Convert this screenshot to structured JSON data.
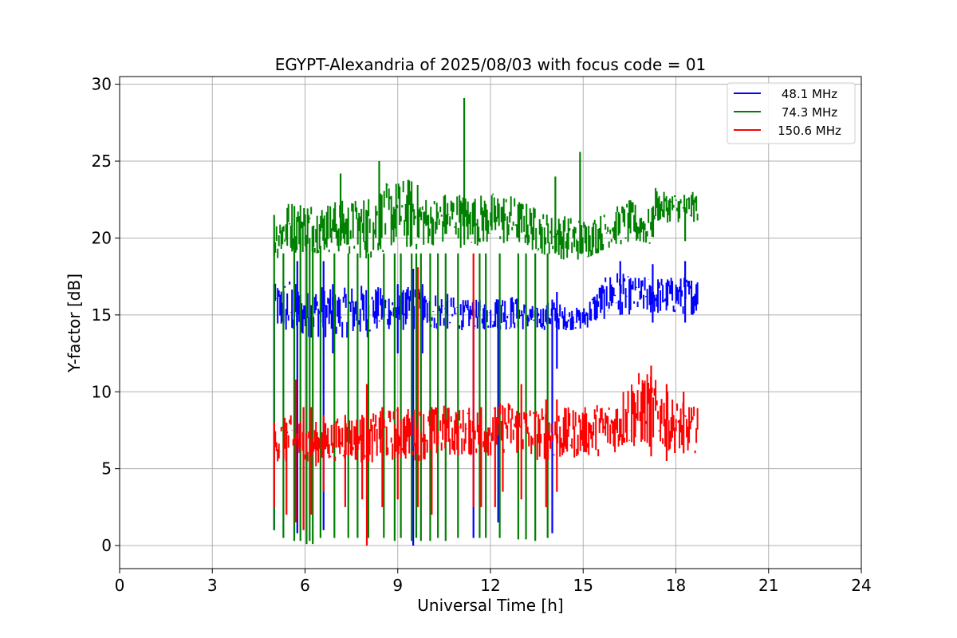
{
  "chart_data": {
    "type": "line",
    "title": "EGYPT-Alexandria of 2025/08/03 with focus code = 01",
    "xlabel": "Universal Time [h]",
    "ylabel": "Y-factor [dB]",
    "xlim": [
      0,
      24
    ],
    "ylim": [
      -1.5,
      30.5
    ],
    "xticks": [
      0,
      3,
      6,
      9,
      12,
      15,
      18,
      21,
      24
    ],
    "yticks": [
      0,
      5,
      10,
      15,
      20,
      25,
      30
    ],
    "grid": true,
    "legend_position": "top-right",
    "series": [
      {
        "name": "48.1 MHz",
        "color": "#0000ff",
        "band": {
          "x": [
            5.0,
            5.5,
            6.0,
            6.5,
            7.0,
            7.5,
            8.0,
            8.5,
            9.0,
            9.5,
            10.0,
            10.5,
            11.0,
            11.5,
            12.0,
            12.5,
            13.0,
            13.5,
            14.0,
            14.5,
            15.0,
            15.5,
            16.0,
            16.5,
            17.0,
            17.5,
            18.0,
            18.7
          ],
          "low": [
            14.0,
            13.5,
            13.5,
            13.5,
            13.5,
            13.5,
            13.5,
            14.0,
            14.0,
            13.8,
            14.0,
            14.0,
            14.0,
            14.0,
            14.0,
            14.0,
            14.0,
            14.0,
            14.0,
            14.0,
            14.0,
            14.5,
            15.0,
            15.0,
            15.0,
            15.0,
            15.0,
            15.0
          ],
          "high": [
            17.0,
            17.5,
            16.5,
            17.0,
            16.5,
            17.0,
            17.0,
            16.8,
            16.5,
            17.0,
            16.5,
            16.5,
            16.0,
            16.0,
            16.0,
            16.5,
            16.0,
            15.5,
            16.0,
            15.5,
            15.5,
            17.0,
            18.0,
            17.5,
            17.5,
            17.5,
            17.5,
            17.5
          ]
        },
        "spikes": [
          {
            "x": 5.0,
            "low": 1.0,
            "high": 17.0
          },
          {
            "x": 5.75,
            "low": 0.8,
            "high": 18.5
          },
          {
            "x": 6.6,
            "low": 1.0,
            "high": 18.5
          },
          {
            "x": 6.9,
            "low": 12.5,
            "high": 17.0
          },
          {
            "x": 9.0,
            "low": 12.5,
            "high": 17.0
          },
          {
            "x": 9.5,
            "low": 0.0,
            "high": 18.0
          },
          {
            "x": 9.8,
            "low": 12.5,
            "high": 17.0
          },
          {
            "x": 11.45,
            "low": 0.5,
            "high": 16.0
          },
          {
            "x": 12.25,
            "low": 1.5,
            "high": 16.0
          },
          {
            "x": 14.0,
            "low": 0.8,
            "high": 16.0
          },
          {
            "x": 14.15,
            "low": 11.5,
            "high": 16.5
          },
          {
            "x": 16.2,
            "low": 15.0,
            "high": 18.5
          },
          {
            "x": 17.25,
            "low": 14.5,
            "high": 18.3
          },
          {
            "x": 18.3,
            "low": 14.5,
            "high": 18.5
          }
        ]
      },
      {
        "name": "74.3 MHz",
        "color": "#008000",
        "band": {
          "x": [
            5.0,
            5.5,
            6.0,
            6.5,
            7.0,
            7.5,
            8.0,
            8.5,
            9.0,
            9.5,
            10.0,
            10.5,
            11.0,
            11.05,
            11.5,
            12.0,
            12.5,
            13.0,
            13.5,
            14.0,
            14.5,
            15.0,
            15.5,
            16.0,
            16.5,
            17.0,
            17.25,
            17.3,
            17.5,
            18.0,
            18.7
          ],
          "low": [
            18.5,
            19.0,
            19.0,
            19.0,
            19.0,
            18.8,
            18.5,
            19.0,
            19.5,
            19.0,
            19.5,
            19.5,
            20.0,
            19.0,
            19.5,
            19.5,
            19.5,
            19.5,
            19.0,
            18.8,
            18.5,
            18.5,
            19.0,
            19.5,
            19.5,
            19.5,
            19.0,
            21.0,
            21.0,
            21.0,
            21.0
          ],
          "high": [
            21.5,
            22.5,
            22.5,
            22.3,
            22.5,
            22.5,
            22.8,
            23.5,
            23.8,
            24.0,
            22.5,
            23.0,
            23.0,
            23.0,
            22.8,
            23.0,
            23.0,
            22.5,
            22.0,
            21.5,
            21.5,
            21.3,
            21.5,
            22.0,
            22.5,
            22.0,
            22.0,
            23.5,
            23.0,
            23.0,
            23.0
          ]
        },
        "spikes": [
          {
            "x": 5.0,
            "low": 1.0,
            "high": 21.5
          },
          {
            "x": 5.3,
            "low": 0.5,
            "high": 19.0
          },
          {
            "x": 5.65,
            "low": 0.3,
            "high": 20.0
          },
          {
            "x": 5.85,
            "low": 0.3,
            "high": 20.0
          },
          {
            "x": 6.05,
            "low": 0.1,
            "high": 20.0
          },
          {
            "x": 6.15,
            "low": 0.3,
            "high": 20.0
          },
          {
            "x": 6.25,
            "low": 0.1,
            "high": 20.0
          },
          {
            "x": 6.5,
            "low": 0.5,
            "high": 19.5
          },
          {
            "x": 6.95,
            "low": 0.5,
            "high": 19.0
          },
          {
            "x": 7.15,
            "low": 19.5,
            "high": 24.2
          },
          {
            "x": 7.4,
            "low": 0.5,
            "high": 19.0
          },
          {
            "x": 7.7,
            "low": 0.5,
            "high": 19.0
          },
          {
            "x": 8.05,
            "low": 0.5,
            "high": 19.0
          },
          {
            "x": 8.4,
            "low": 19.5,
            "high": 25.0
          },
          {
            "x": 8.55,
            "low": 0.5,
            "high": 19.0
          },
          {
            "x": 8.9,
            "low": 0.3,
            "high": 19.0
          },
          {
            "x": 9.1,
            "low": 0.5,
            "high": 19.0
          },
          {
            "x": 9.45,
            "low": 0.3,
            "high": 19.0
          },
          {
            "x": 9.6,
            "low": 0.5,
            "high": 19.0
          },
          {
            "x": 9.75,
            "low": 0.3,
            "high": 19.0
          },
          {
            "x": 10.05,
            "low": 0.3,
            "high": 19.0
          },
          {
            "x": 10.3,
            "low": 0.5,
            "high": 19.0
          },
          {
            "x": 10.55,
            "low": 0.3,
            "high": 19.0
          },
          {
            "x": 10.95,
            "low": 0.5,
            "high": 19.0
          },
          {
            "x": 11.15,
            "low": 20.0,
            "high": 29.1
          },
          {
            "x": 11.65,
            "low": 0.5,
            "high": 19.0
          },
          {
            "x": 11.85,
            "low": 0.5,
            "high": 19.0
          },
          {
            "x": 12.3,
            "low": 0.5,
            "high": 19.0
          },
          {
            "x": 12.9,
            "low": 0.4,
            "high": 19.0
          },
          {
            "x": 13.15,
            "low": 0.4,
            "high": 19.0
          },
          {
            "x": 13.45,
            "low": 0.3,
            "high": 19.0
          },
          {
            "x": 13.85,
            "low": 0.5,
            "high": 19.0
          },
          {
            "x": 14.1,
            "low": 19.0,
            "high": 24.0
          },
          {
            "x": 14.9,
            "low": 19.0,
            "high": 25.6
          },
          {
            "x": 18.3,
            "low": 19.8,
            "high": 22.0
          }
        ]
      },
      {
        "name": "150.6 MHz",
        "color": "#ff0000",
        "band": {
          "x": [
            5.0,
            5.5,
            6.0,
            6.5,
            7.0,
            7.5,
            8.0,
            8.5,
            9.0,
            9.5,
            10.0,
            10.5,
            11.0,
            11.5,
            12.0,
            12.5,
            13.0,
            13.5,
            14.0,
            14.5,
            15.0,
            15.5,
            16.0,
            16.5,
            17.0,
            17.5,
            18.0,
            18.7
          ],
          "low": [
            5.5,
            5.2,
            5.0,
            5.2,
            5.5,
            5.5,
            5.3,
            5.5,
            5.5,
            5.5,
            5.5,
            5.8,
            5.8,
            5.8,
            5.8,
            6.0,
            5.8,
            5.5,
            5.5,
            5.5,
            5.8,
            5.8,
            6.0,
            6.3,
            6.3,
            6.3,
            6.0,
            6.0
          ],
          "high": [
            8.0,
            8.5,
            8.3,
            8.0,
            8.3,
            8.5,
            8.5,
            8.8,
            9.0,
            9.0,
            9.0,
            9.2,
            9.0,
            9.0,
            9.0,
            9.5,
            9.3,
            9.0,
            9.0,
            9.0,
            9.0,
            9.3,
            9.5,
            11.0,
            11.5,
            10.5,
            9.5,
            9.0
          ]
        },
        "spikes": [
          {
            "x": 5.0,
            "low": 2.5,
            "high": 8.0
          },
          {
            "x": 5.4,
            "low": 2.0,
            "high": 8.0
          },
          {
            "x": 5.7,
            "low": 1.5,
            "high": 10.8
          },
          {
            "x": 5.95,
            "low": 1.0,
            "high": 9.0
          },
          {
            "x": 6.2,
            "low": 2.0,
            "high": 9.0
          },
          {
            "x": 6.6,
            "low": 3.5,
            "high": 8.5
          },
          {
            "x": 7.3,
            "low": 2.5,
            "high": 8.5
          },
          {
            "x": 7.85,
            "low": 3.0,
            "high": 8.5
          },
          {
            "x": 8.0,
            "low": 0.0,
            "high": 10.5
          },
          {
            "x": 8.5,
            "low": 2.5,
            "high": 9.0
          },
          {
            "x": 9.0,
            "low": 3.0,
            "high": 9.0
          },
          {
            "x": 9.65,
            "low": 2.5,
            "high": 18.1
          },
          {
            "x": 10.1,
            "low": 2.0,
            "high": 9.0
          },
          {
            "x": 11.45,
            "low": 2.5,
            "high": 19.0
          },
          {
            "x": 11.7,
            "low": 2.5,
            "high": 9.0
          },
          {
            "x": 12.15,
            "low": 2.5,
            "high": 9.0
          },
          {
            "x": 12.4,
            "low": 3.5,
            "high": 9.0
          },
          {
            "x": 13.0,
            "low": 3.0,
            "high": 10.5
          },
          {
            "x": 13.8,
            "low": 2.5,
            "high": 9.5
          },
          {
            "x": 14.15,
            "low": 3.5,
            "high": 9.5
          },
          {
            "x": 17.2,
            "low": 5.8,
            "high": 11.7
          },
          {
            "x": 17.7,
            "low": 5.5,
            "high": 10.5
          },
          {
            "x": 18.25,
            "low": 6.0,
            "high": 10.0
          }
        ]
      }
    ]
  }
}
